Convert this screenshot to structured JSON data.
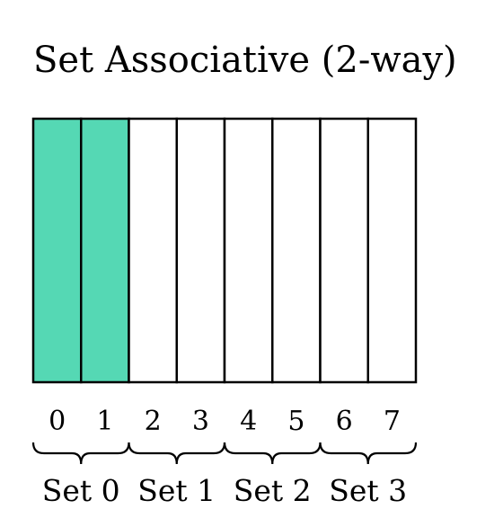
{
  "title": "Set Associative (2-way)",
  "colors": {
    "filled": "#55d8b4",
    "empty": "#ffffff",
    "stroke": "#000000"
  },
  "blocks": [
    {
      "index": "0",
      "filled": true
    },
    {
      "index": "1",
      "filled": true
    },
    {
      "index": "2",
      "filled": false
    },
    {
      "index": "3",
      "filled": false
    },
    {
      "index": "4",
      "filled": false
    },
    {
      "index": "5",
      "filled": false
    },
    {
      "index": "6",
      "filled": false
    },
    {
      "index": "7",
      "filled": false
    }
  ],
  "sets": [
    {
      "label": "Set 0"
    },
    {
      "label": "Set 1"
    },
    {
      "label": "Set 2"
    },
    {
      "label": "Set 3"
    }
  ]
}
